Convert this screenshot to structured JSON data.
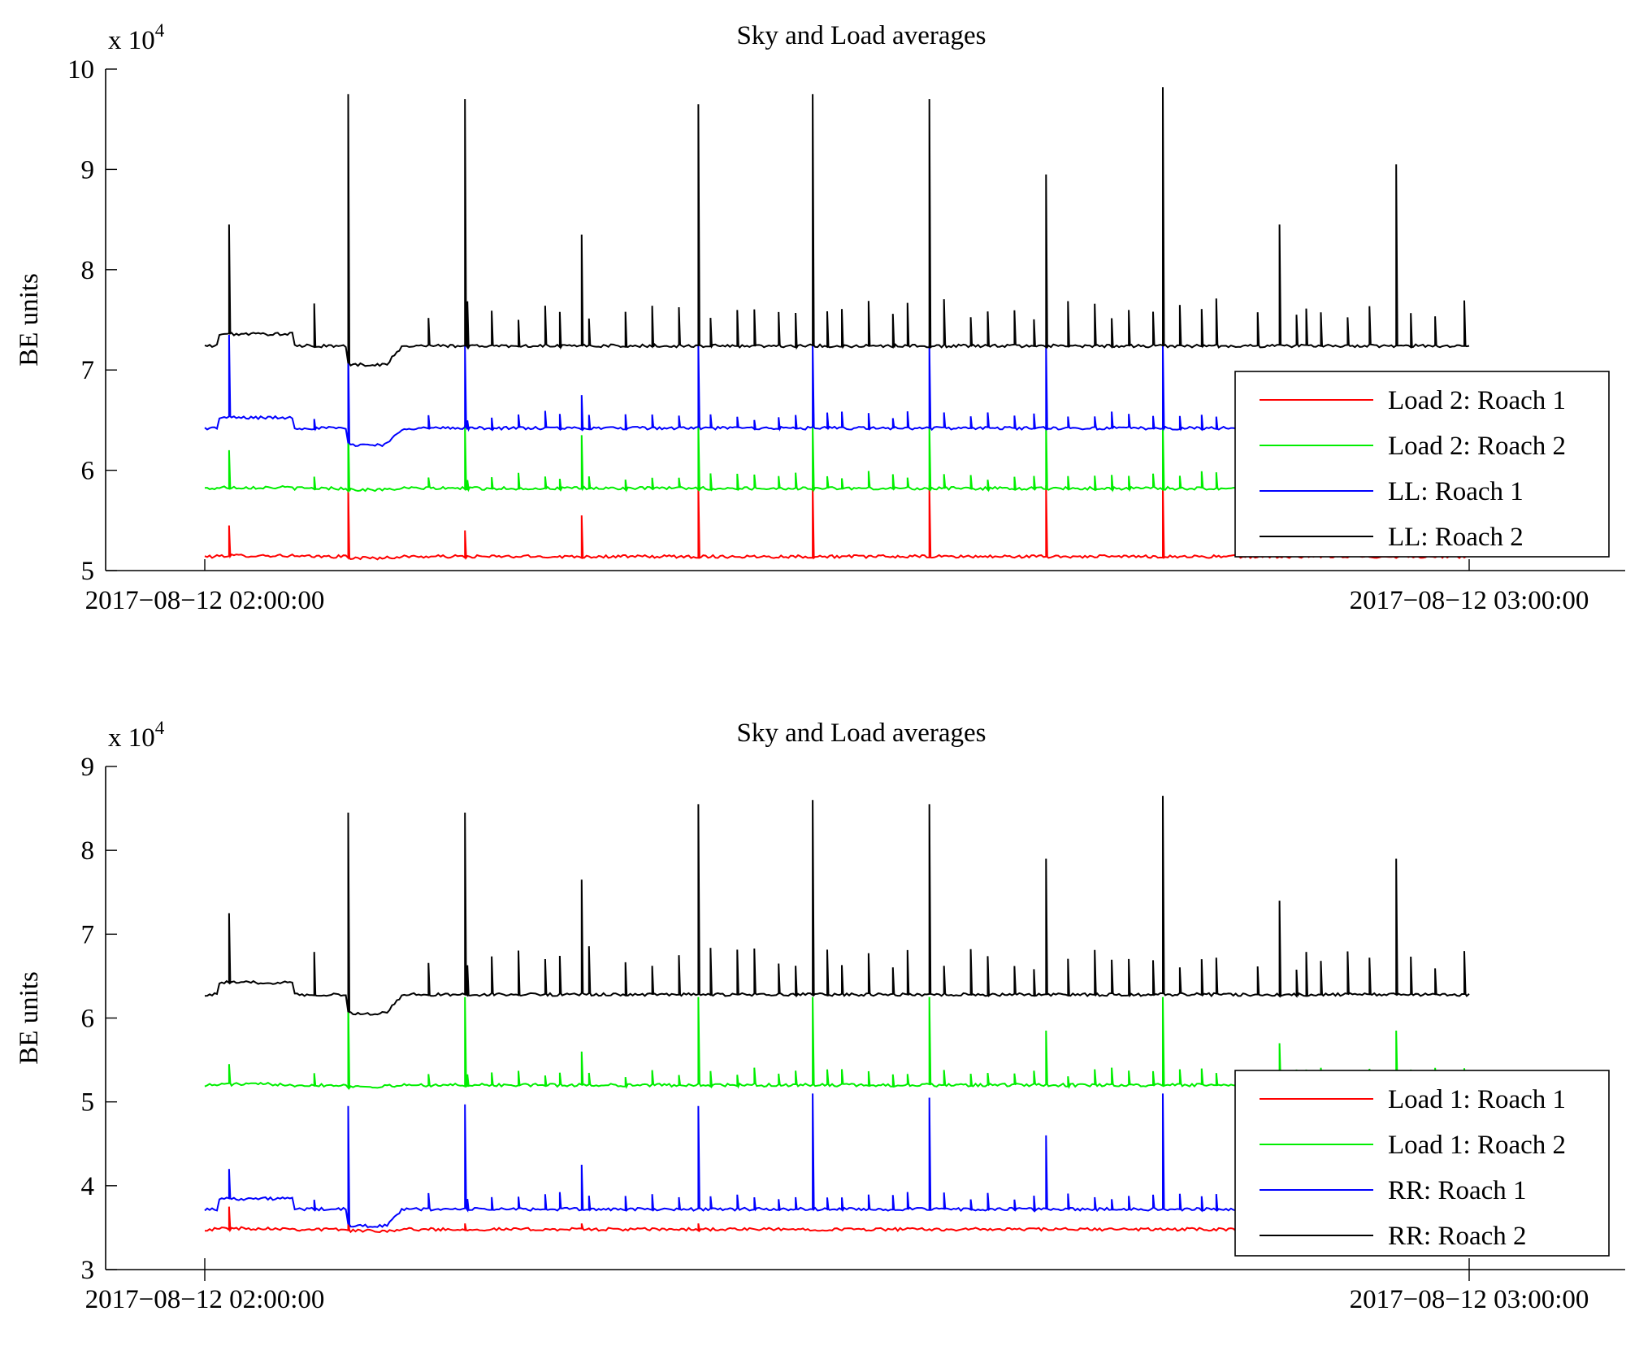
{
  "chart_data": [
    {
      "type": "line",
      "title": "Sky and Load averages",
      "ylabel": "BE units",
      "y_multiplier": "x 10",
      "y_multiplier_exponent": "4",
      "ylim": [
        5,
        10
      ],
      "yticks": [
        5,
        6,
        7,
        8,
        9,
        10
      ],
      "xlim": [
        "2017-08-12 02:00:00",
        "2017-08-12 03:00:00"
      ],
      "xtick_labels": [
        "2017−08−12 02:00:00",
        "2017−08−12 03:00:00"
      ],
      "legend_position": "bottom-right",
      "grid": false,
      "series": [
        {
          "name": "Load 2: Roach 1",
          "color": "#ff0000",
          "baseline": 5.14,
          "spike_tops": [
            5.45,
            5.85,
            5.4,
            5.55,
            5.85,
            5.85,
            5.85,
            5.85,
            5.85
          ]
        },
        {
          "name": "Load 2: Roach 2",
          "color": "#00ee00",
          "baseline": 5.82,
          "spike_tops": [
            6.2,
            6.45,
            6.45,
            6.35,
            6.45,
            6.45,
            6.45,
            6.45,
            6.45
          ]
        },
        {
          "name": "LL: Roach 1",
          "color": "#0000ff",
          "baseline": 6.42,
          "spike_tops": [
            7.35,
            7.25,
            7.25,
            6.75,
            7.25,
            7.25,
            7.25,
            7.25,
            7.25
          ]
        },
        {
          "name": "LL: Roach 2",
          "color": "#000000",
          "baseline": 7.24,
          "spike_tops": [
            8.45,
            9.75,
            9.7,
            8.35,
            9.65,
            9.75,
            9.7,
            8.95,
            9.82,
            8.45,
            9.05
          ]
        }
      ]
    },
    {
      "type": "line",
      "title": "Sky and Load averages",
      "ylabel": "BE units",
      "y_multiplier": "x 10",
      "y_multiplier_exponent": "4",
      "ylim": [
        3,
        9
      ],
      "yticks": [
        3,
        4,
        5,
        6,
        7,
        8,
        9
      ],
      "xlim": [
        "2017-08-12 02:00:00",
        "2017-08-12 03:00:00"
      ],
      "xtick_labels": [
        "2017−08−12 02:00:00",
        "2017−08−12 03:00:00"
      ],
      "legend_position": "bottom-right",
      "grid": false,
      "series": [
        {
          "name": "Load 1: Roach 1",
          "color": "#ff0000",
          "baseline": 3.48,
          "spike_tops": [
            3.75,
            3.6,
            3.55,
            3.55,
            3.55
          ]
        },
        {
          "name": "Load 1: Roach 2",
          "color": "#00ee00",
          "baseline": 5.2,
          "spike_tops": [
            5.45,
            6.25,
            6.25,
            5.6,
            6.25,
            6.25,
            6.25,
            5.85,
            6.25,
            5.7,
            5.85
          ]
        },
        {
          "name": "RR: Roach 1",
          "color": "#0000ff",
          "baseline": 3.72,
          "spike_tops": [
            4.2,
            4.95,
            4.97,
            4.25,
            4.95,
            5.1,
            5.05,
            4.6,
            5.1
          ]
        },
        {
          "name": "RR: Roach 2",
          "color": "#000000",
          "baseline": 6.28,
          "spike_tops": [
            7.25,
            8.45,
            8.45,
            7.65,
            8.55,
            8.6,
            8.55,
            7.9,
            8.65,
            7.4,
            7.9
          ]
        }
      ]
    }
  ]
}
